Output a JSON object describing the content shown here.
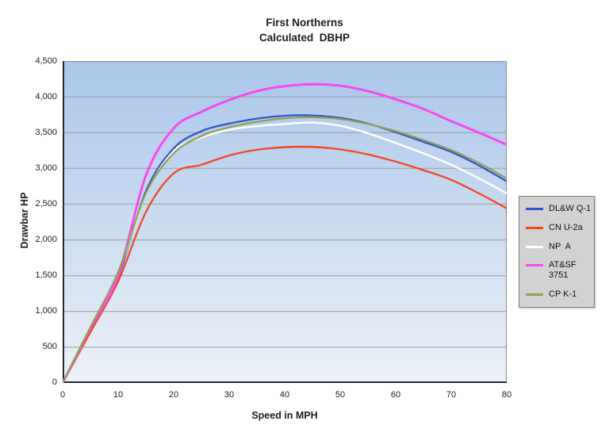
{
  "chart_data": {
    "type": "line",
    "title_line1": "First Northerns",
    "title_line2": "Calculated  DBHP",
    "xlabel": "Speed in MPH",
    "ylabel": "Drawbar HP",
    "xlim": [
      0,
      80
    ],
    "ylim": [
      0,
      4500
    ],
    "grid": "horizontal-only",
    "grid_step": 500,
    "legend_position": "right",
    "grid_color": "#9b9b9b",
    "border_color": "#8a8a8a",
    "axis_color": "#2a2a2a",
    "plot_bg_top": "#a9c6ea",
    "plot_bg_bottom": "#edf1f8",
    "x": [
      0,
      5,
      10,
      15,
      20,
      25,
      30,
      35,
      40,
      45,
      50,
      55,
      60,
      65,
      70,
      75,
      80
    ],
    "series": [
      {
        "name": "DL&W Q-1",
        "legend_lines": [
          "DL&W Q-1"
        ],
        "color": "#3355cc",
        "width": 2.3,
        "values": [
          0,
          745,
          1480,
          2680,
          3280,
          3520,
          3625,
          3695,
          3735,
          3740,
          3705,
          3625,
          3505,
          3370,
          3230,
          3040,
          2820
        ]
      },
      {
        "name": "CN U-2a",
        "legend_lines": [
          "CN U-2a"
        ],
        "color": "#f2481f",
        "width": 2.3,
        "values": [
          0,
          710,
          1420,
          2390,
          2930,
          3050,
          3180,
          3260,
          3295,
          3300,
          3265,
          3195,
          3095,
          2975,
          2840,
          2650,
          2440
        ]
      },
      {
        "name": "NP  A",
        "legend_lines": [
          "NP  A"
        ],
        "color": "#ffffff",
        "width": 2.4,
        "values": [
          0,
          770,
          1530,
          2640,
          3240,
          3430,
          3540,
          3590,
          3620,
          3640,
          3595,
          3490,
          3355,
          3210,
          3050,
          2860,
          2650
        ]
      },
      {
        "name": "AT&SF 3751",
        "legend_lines": [
          "AT&SF",
          "3751"
        ],
        "color": "#f849ef",
        "width": 3,
        "values": [
          0,
          760,
          1500,
          2900,
          3560,
          3790,
          3955,
          4080,
          4150,
          4175,
          4155,
          4080,
          3965,
          3830,
          3660,
          3500,
          3330
        ]
      },
      {
        "name": "CP K-1",
        "legend_lines": [
          "CP K-1"
        ],
        "color": "#8ea353",
        "width": 2.3,
        "values": [
          0,
          780,
          1550,
          2650,
          3210,
          3450,
          3575,
          3650,
          3700,
          3715,
          3690,
          3620,
          3520,
          3395,
          3255,
          3075,
          2860
        ]
      }
    ],
    "y_axis": {
      "ticks": [
        "4,500",
        "4,000",
        "3,500",
        "3,000",
        "2,500",
        "2,000",
        "1,500",
        "1,000",
        "500",
        "0"
      ]
    },
    "x_axis": {
      "ticks": [
        "0",
        "10",
        "20",
        "30",
        "40",
        "50",
        "60",
        "70",
        "80"
      ]
    }
  }
}
